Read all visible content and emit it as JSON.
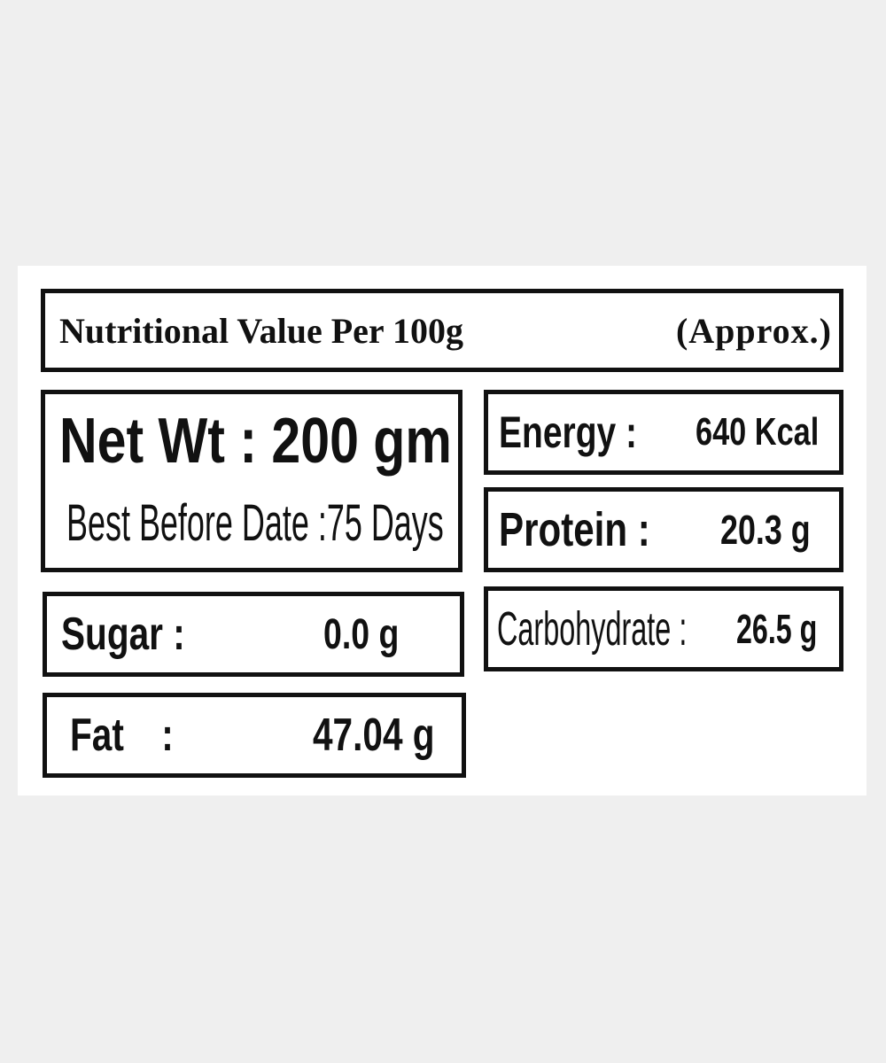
{
  "header": {
    "title": "Nutritional Value Per 100g",
    "note": "(Approx.)"
  },
  "net_weight": {
    "label": "Net Wt :",
    "value": "200 gm"
  },
  "best_before": {
    "label": "Best Before Date :",
    "value": "75 Days"
  },
  "nutrients": [
    {
      "label": "Energy :",
      "value": "640 Kcal"
    },
    {
      "label": "Protein :",
      "value": "20.3 g"
    },
    {
      "label": "Sugar :",
      "value": "0.0 g"
    },
    {
      "label": "Carbohydrate :",
      "value": "26.5 g"
    },
    {
      "label": "Fat :",
      "value": "47.04 g"
    }
  ]
}
